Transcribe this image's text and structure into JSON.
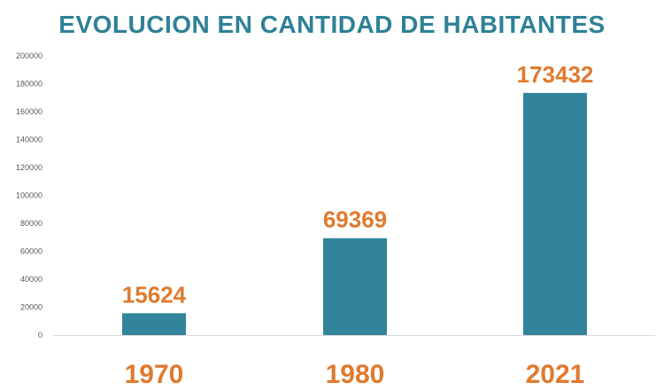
{
  "chart_data": {
    "type": "bar",
    "title": "EVOLUCION EN CANTIDAD DE HABITANTES",
    "categories": [
      "1970",
      "1980",
      "2021"
    ],
    "values": [
      15624,
      69369,
      173432
    ],
    "data_labels": [
      "15624",
      "69369",
      "173432"
    ],
    "ylim": [
      0,
      200000
    ],
    "yticks": [
      "0",
      "20000",
      "40000",
      "60000",
      "80000",
      "100000",
      "120000",
      "140000",
      "160000",
      "180000",
      "200000"
    ],
    "grid": false,
    "legend": "none"
  },
  "colors": {
    "title": "#2e8196",
    "bar": "#31849b",
    "label": "#e07a2e",
    "axis": "#d9d9d9",
    "tick": "#595959"
  }
}
